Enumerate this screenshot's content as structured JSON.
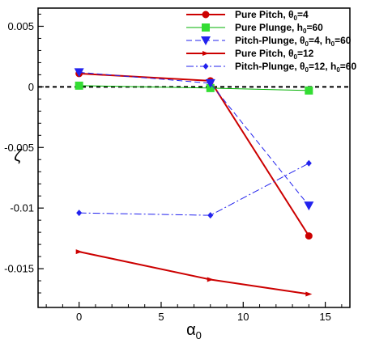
{
  "chart_data": {
    "type": "line",
    "xlabel": "α0",
    "ylabel": "ζ",
    "xlim": [
      -2.5,
      16.5
    ],
    "ylim": [
      -0.0182,
      0.0065
    ],
    "x_ticks": [
      0,
      5,
      10,
      15
    ],
    "x_tick_labels": [
      "0",
      "5",
      "10",
      "15"
    ],
    "y_ticks": [
      0.005,
      0,
      -0.005,
      -0.01,
      -0.015
    ],
    "y_tick_labels": [
      "0.005",
      "0",
      "-0.005",
      "-0.01",
      "-0.015"
    ],
    "grid": false,
    "legend_position": "top-right",
    "zero_line": {
      "y": 0,
      "style": "dashed",
      "color": "#000000"
    },
    "series": [
      {
        "name": "Pure Pitch, θ0=4",
        "legend_parts": [
          [
            "Pure Pitch, θ",
            false
          ],
          [
            "0",
            true
          ],
          [
            "=4",
            false
          ]
        ],
        "color": "#cc0000",
        "line": "solid",
        "line_width": 2,
        "marker": "circle",
        "x": [
          0,
          8,
          14
        ],
        "y": [
          0.0011,
          0.0005,
          -0.0123
        ]
      },
      {
        "name": "Pure Plunge, h0=60",
        "legend_parts": [
          [
            "Pure Plunge, h",
            false
          ],
          [
            "0",
            true
          ],
          [
            "=60",
            false
          ]
        ],
        "color": "#00b000",
        "marker_color": "#33dd33",
        "line": "solid",
        "line_width": 1,
        "marker": "square",
        "x": [
          0,
          8,
          14
        ],
        "y": [
          0.0001,
          -0.0001,
          -0.0003
        ]
      },
      {
        "name": "Pitch-Plunge, θ0=4, h0=60",
        "legend_parts": [
          [
            "Pitch-Plunge, θ",
            false
          ],
          [
            "0",
            true
          ],
          [
            "=4, h",
            false
          ],
          [
            "0",
            true
          ],
          [
            "=60",
            false
          ]
        ],
        "color": "#2222ee",
        "line": "dashed",
        "line_width": 1,
        "marker": "triangle-down",
        "x": [
          0,
          8,
          14
        ],
        "y": [
          0.0012,
          0.0003,
          -0.0098
        ]
      },
      {
        "name": "Pure Pitch, θ0=12",
        "legend_parts": [
          [
            "Pure Pitch, θ",
            false
          ],
          [
            "0",
            true
          ],
          [
            "=12",
            false
          ]
        ],
        "color": "#cc0000",
        "line": "solid",
        "line_width": 2,
        "marker": "arrow",
        "x": [
          0,
          8,
          14
        ],
        "y": [
          -0.0136,
          -0.0159,
          -0.0171
        ]
      },
      {
        "name": "Pitch-Plunge, θ0=12, h0=60",
        "legend_parts": [
          [
            "Pitch-Plunge, θ",
            false
          ],
          [
            "0",
            true
          ],
          [
            "=12, h",
            false
          ],
          [
            "0",
            true
          ],
          [
            "=60",
            false
          ]
        ],
        "color": "#2222ee",
        "line": "dashdot",
        "line_width": 1,
        "marker": "diamond",
        "x": [
          0,
          8,
          14
        ],
        "y": [
          -0.0104,
          -0.0106,
          -0.0063
        ]
      }
    ]
  }
}
